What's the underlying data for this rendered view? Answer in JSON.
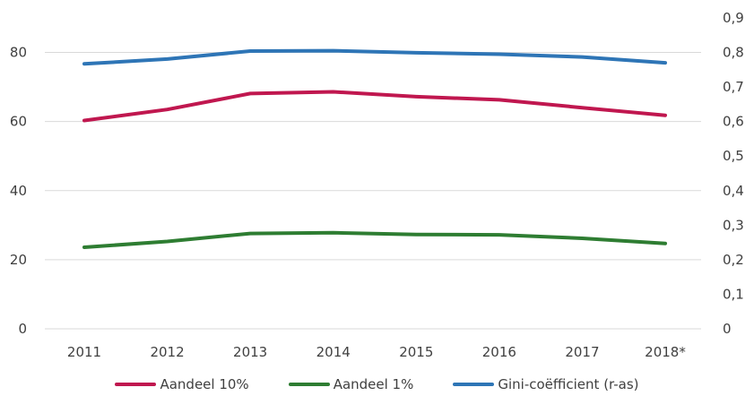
{
  "chart_data": {
    "type": "line",
    "title": "",
    "categories": [
      "2011",
      "2012",
      "2013",
      "2014",
      "2015",
      "2016",
      "2017",
      "2018*"
    ],
    "y_left": {
      "ylim": [
        0,
        90
      ],
      "ticks": [
        "0",
        "20",
        "40",
        "60",
        "80"
      ],
      "tick_values": [
        0,
        20,
        40,
        60,
        80
      ]
    },
    "y_right": {
      "ylim": [
        0,
        0.9
      ],
      "ticks": [
        "0",
        "0,1",
        "0,2",
        "0,3",
        "0,4",
        "0,5",
        "0,6",
        "0,7",
        "0,8",
        "0,9"
      ],
      "tick_values": [
        0,
        0.1,
        0.2,
        0.3,
        0.4,
        0.5,
        0.6,
        0.7,
        0.8,
        0.9
      ]
    },
    "grid": true,
    "legend_position": "bottom",
    "series": [
      {
        "name": "Aandeel 10%",
        "axis": "left",
        "color": "#c0174f",
        "values": [
          60.3,
          63.5,
          68.1,
          68.6,
          67.2,
          66.3,
          64.0,
          61.8
        ]
      },
      {
        "name": "Aandeel 1%",
        "axis": "left",
        "color": "#2e7d32",
        "values": [
          23.6,
          25.3,
          27.6,
          27.8,
          27.3,
          27.2,
          26.2,
          24.7
        ]
      },
      {
        "name": "Gini-coëfficient (r-as)",
        "axis": "right",
        "color": "#2e75b6",
        "values": [
          0.767,
          0.781,
          0.804,
          0.805,
          0.799,
          0.795,
          0.787,
          0.77
        ]
      }
    ]
  }
}
